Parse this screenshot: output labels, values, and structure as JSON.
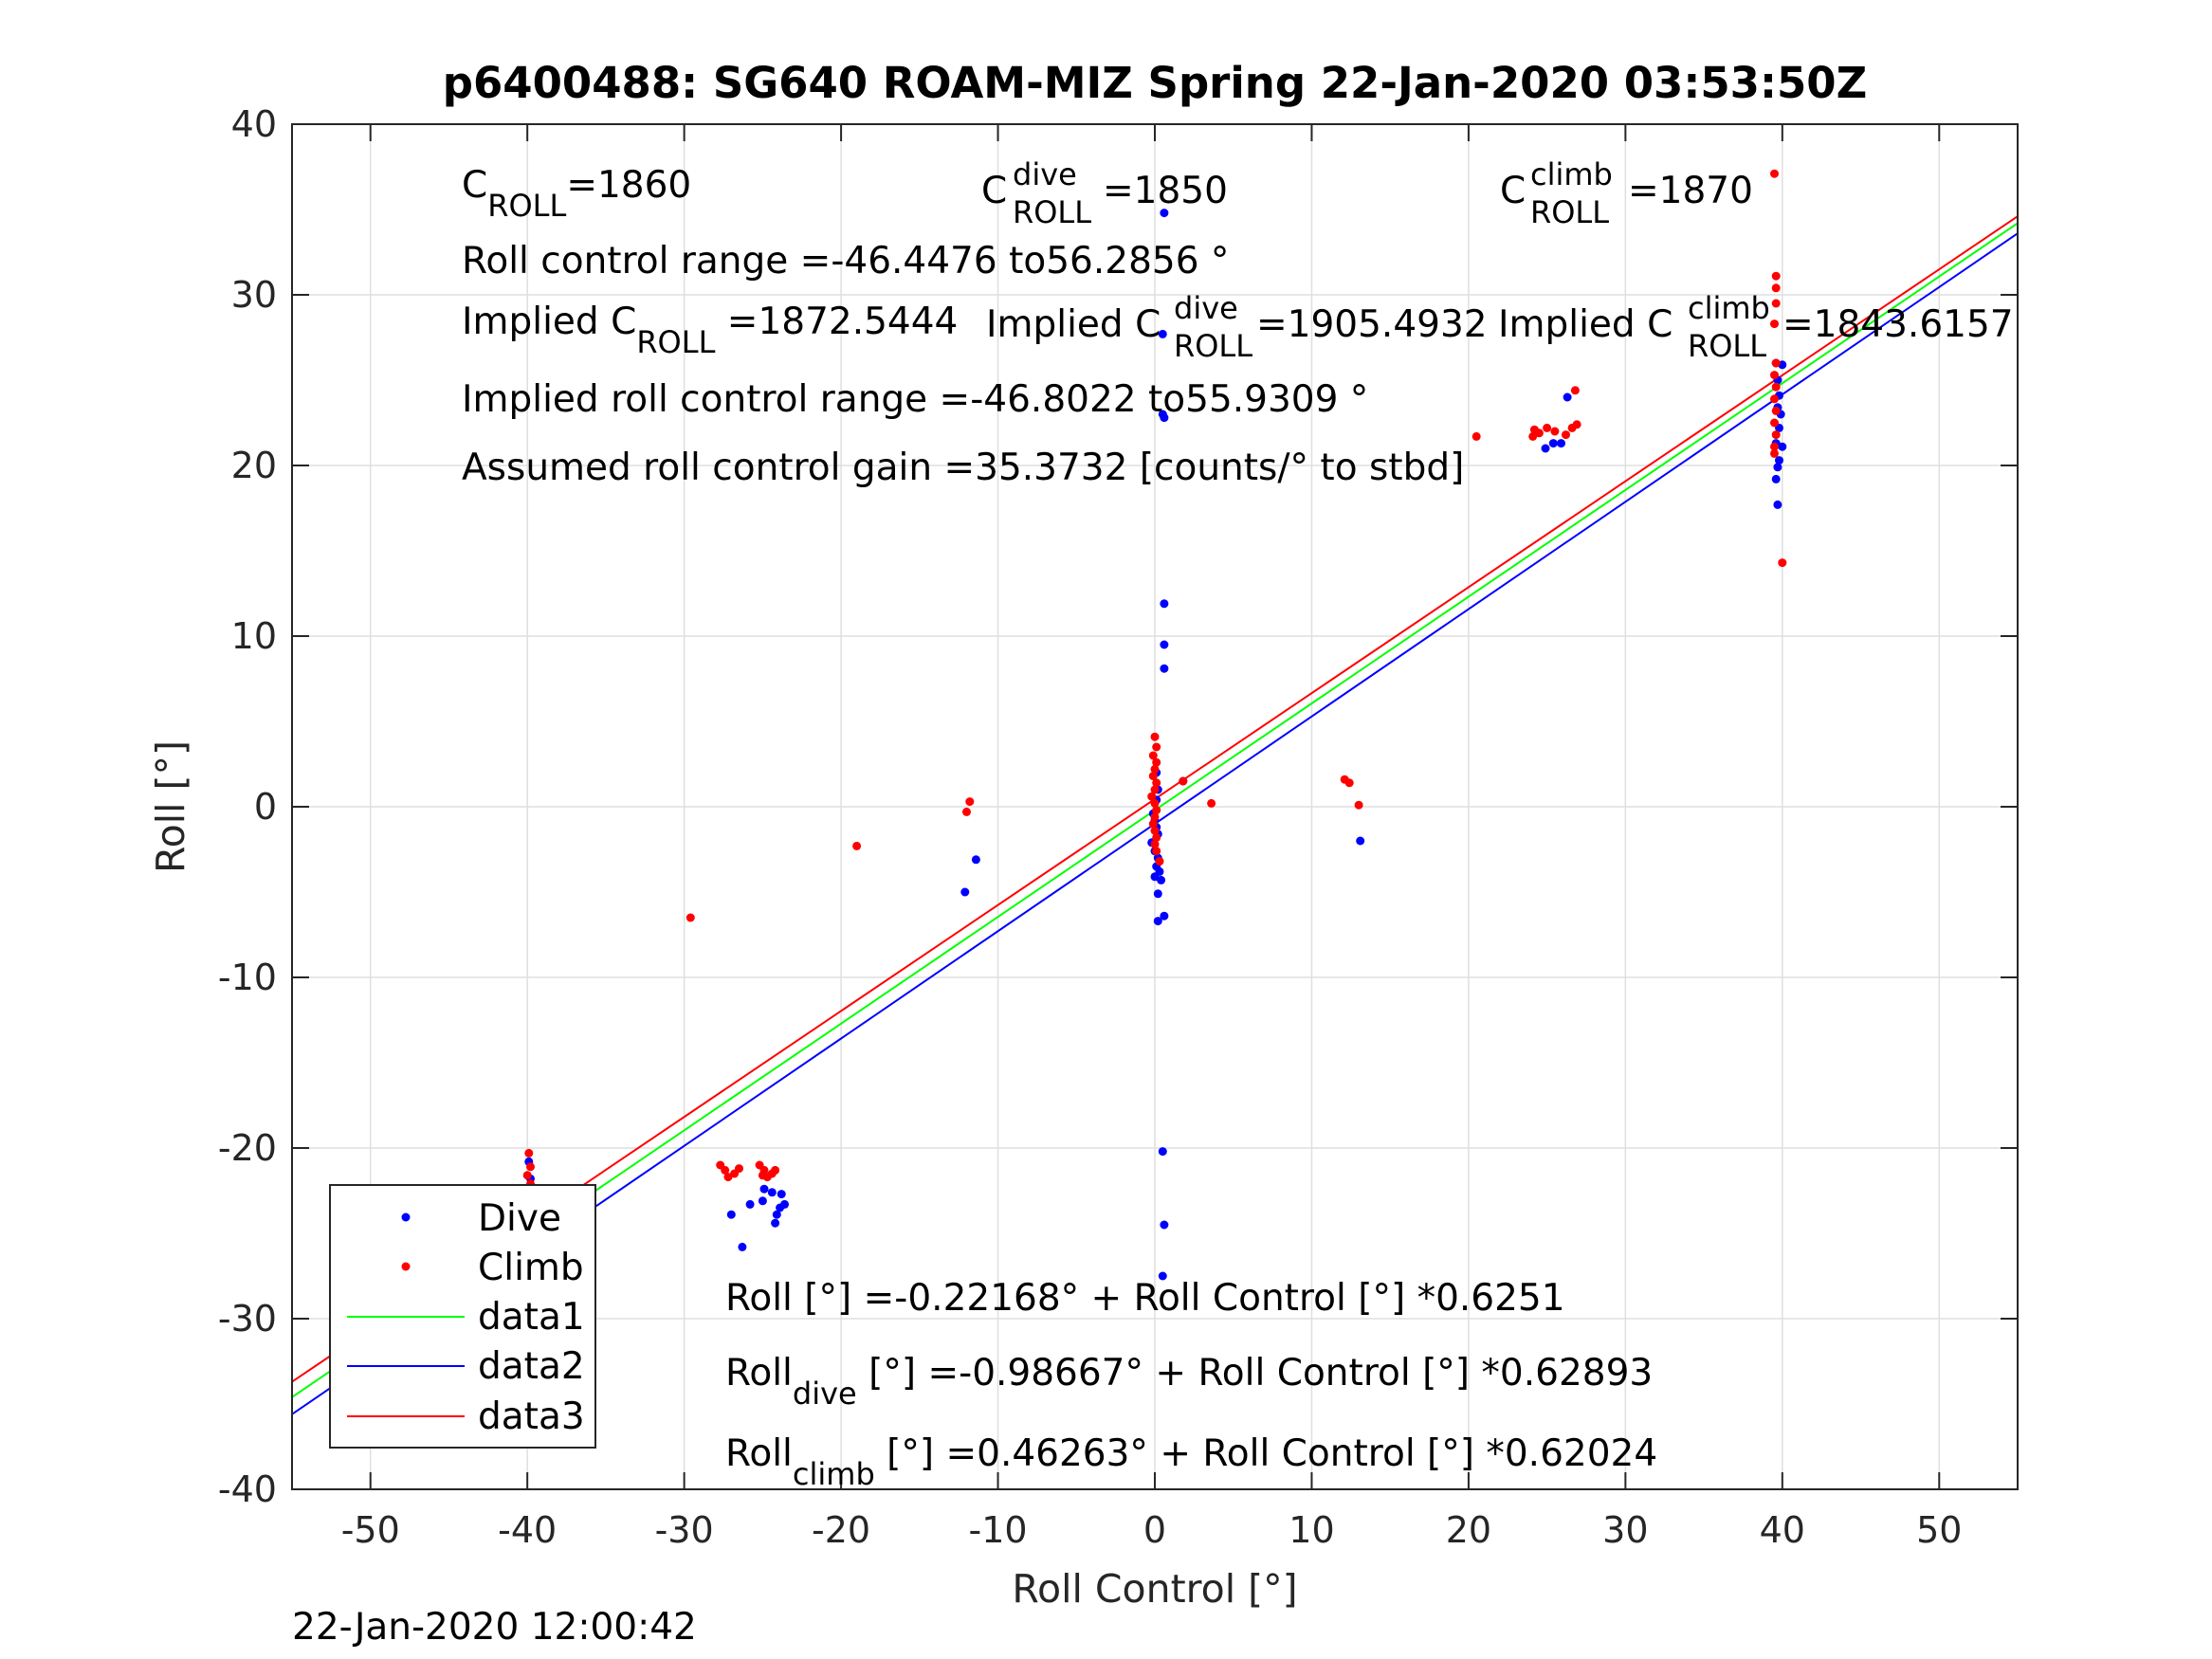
{
  "title": "p6400488: SG640 ROAM-MIZ Spring 22-Jan-2020 03:53:50Z",
  "timestamp": "22-Jan-2020 12:00:42",
  "annotations": {
    "c_roll": {
      "symbol": "C",
      "sub": "ROLL",
      "value": "=1860"
    },
    "c_roll_dive": {
      "symbol": "C",
      "sup": "dive",
      "sub": "ROLL",
      "value": "=1850"
    },
    "c_roll_climb": {
      "symbol": "C",
      "sup": "climb",
      "sub": "ROLL",
      "value": "=1870"
    },
    "roll_range": "Roll control range =-46.4476 to56.2856 °",
    "implied_c_roll": {
      "prefix": "Implied C",
      "sub": "ROLL",
      "value": " =1872.5444"
    },
    "implied_c_dive": {
      "prefix": "Implied C",
      "sup": "dive",
      "sub": "ROLL",
      "value": " =1905.4932"
    },
    "implied_c_climb": {
      "prefix": "Implied C",
      "sup": "climb",
      "sub": "ROLL",
      "value": " =1843.6157"
    },
    "implied_range": "Implied roll control range =-46.8022 to55.9309 °",
    "gain": "Assumed roll control gain =35.3732 [counts/° to stbd]",
    "fit_all": "Roll [°] =-0.22168° + Roll Control [°] *0.6251",
    "fit_dive": {
      "prefix": "Roll",
      "sub": "dive",
      "rest": " [°] =-0.98667° + Roll Control [°] *0.62893"
    },
    "fit_climb": {
      "prefix": "Roll",
      "sub": "climb",
      "rest": " [°] =0.46263° + Roll Control [°] *0.62024"
    }
  },
  "colors": {
    "dive": "#0000ff",
    "climb": "#ff0000",
    "data1": "#00ff00",
    "data2": "#0000ff",
    "data3": "#ff0000",
    "grid": "#dfdfdf"
  },
  "chart_data": {
    "type": "scatter",
    "title": "p6400488: SG640 ROAM-MIZ Spring 22-Jan-2020 03:53:50Z",
    "xlabel": "Roll Control [°]",
    "ylabel": "Roll [°]",
    "xlim": [
      -55,
      55
    ],
    "ylim": [
      -40,
      40
    ],
    "xticks": [
      -50,
      -40,
      -30,
      -20,
      -10,
      0,
      10,
      20,
      30,
      40,
      50
    ],
    "yticks": [
      -40,
      -30,
      -20,
      -10,
      0,
      10,
      20,
      30,
      40
    ],
    "grid": true,
    "legend_position": "bottom-left",
    "series": [
      {
        "name": "Dive",
        "kind": "points",
        "points": [
          [
            -39.9,
            -20.8
          ],
          [
            -39.8,
            -21.8
          ],
          [
            -39.8,
            -22.6
          ],
          [
            -39.9,
            -23.4
          ],
          [
            -39.8,
            -24.1
          ],
          [
            -39.7,
            -24.8
          ],
          [
            -39.9,
            -25.5
          ],
          [
            -39.8,
            -26.1
          ],
          [
            -39.6,
            -26.7
          ],
          [
            -39.7,
            -27.3
          ],
          [
            -39.9,
            -27.9
          ],
          [
            -39.8,
            -28.4
          ],
          [
            -39.5,
            -25.9
          ],
          [
            -39.6,
            -26.4
          ],
          [
            -27.0,
            -23.9
          ],
          [
            -26.3,
            -25.8
          ],
          [
            -25.8,
            -23.3
          ],
          [
            -25.0,
            -23.1
          ],
          [
            -24.9,
            -22.4
          ],
          [
            -24.4,
            -22.6
          ],
          [
            -24.1,
            -23.9
          ],
          [
            -24.2,
            -24.4
          ],
          [
            -23.9,
            -23.5
          ],
          [
            -23.6,
            -23.3
          ],
          [
            -23.8,
            -22.7
          ],
          [
            -12.1,
            -5.0
          ],
          [
            -11.4,
            -3.1
          ],
          [
            0.6,
            34.8
          ],
          [
            0.5,
            27.7
          ],
          [
            0.5,
            23.0
          ],
          [
            0.6,
            22.8
          ],
          [
            0.6,
            11.9
          ],
          [
            0.6,
            9.5
          ],
          [
            0.6,
            8.1
          ],
          [
            0.1,
            2.0
          ],
          [
            0.2,
            1.0
          ],
          [
            0.1,
            0.4
          ],
          [
            -0.1,
            -0.4
          ],
          [
            0.0,
            -0.8
          ],
          [
            0.1,
            -1.2
          ],
          [
            0.2,
            -1.6
          ],
          [
            -0.2,
            -2.1
          ],
          [
            0.0,
            -2.6
          ],
          [
            0.2,
            -3.0
          ],
          [
            0.1,
            -3.5
          ],
          [
            0.3,
            -3.8
          ],
          [
            0.0,
            -4.1
          ],
          [
            0.4,
            -4.3
          ],
          [
            0.2,
            -5.1
          ],
          [
            0.6,
            -6.4
          ],
          [
            0.2,
            -6.7
          ],
          [
            1.8,
            1.5
          ],
          [
            0.5,
            -20.2
          ],
          [
            0.6,
            -24.5
          ],
          [
            0.5,
            -27.5
          ],
          [
            13.1,
            -2.0
          ],
          [
            24.9,
            21.0
          ],
          [
            25.4,
            21.3
          ],
          [
            25.9,
            21.3
          ],
          [
            26.3,
            24.0
          ],
          [
            39.6,
            26.0
          ],
          [
            39.7,
            25.0
          ],
          [
            39.8,
            24.1
          ],
          [
            39.7,
            23.4
          ],
          [
            39.9,
            23.0
          ],
          [
            39.8,
            22.2
          ],
          [
            39.6,
            21.3
          ],
          [
            39.8,
            20.3
          ],
          [
            39.7,
            19.9
          ],
          [
            39.6,
            19.2
          ],
          [
            39.7,
            17.7
          ],
          [
            40.0,
            25.9
          ],
          [
            40.0,
            21.1
          ]
        ]
      },
      {
        "name": "Climb",
        "kind": "points",
        "points": [
          [
            -39.9,
            -20.3
          ],
          [
            -39.8,
            -21.1
          ],
          [
            -40.0,
            -21.6
          ],
          [
            -39.8,
            -22.1
          ],
          [
            -39.9,
            -22.6
          ],
          [
            -39.7,
            -23.0
          ],
          [
            -39.9,
            -23.5
          ],
          [
            -39.8,
            -24.0
          ],
          [
            -39.9,
            -24.5
          ],
          [
            -39.8,
            -25.0
          ],
          [
            -39.7,
            -25.5
          ],
          [
            -39.8,
            -26.0
          ],
          [
            -39.9,
            -26.5
          ],
          [
            -40.0,
            -24.3
          ],
          [
            -29.6,
            -6.5
          ],
          [
            -27.7,
            -21.0
          ],
          [
            -27.4,
            -21.3
          ],
          [
            -27.2,
            -21.7
          ],
          [
            -26.8,
            -21.5
          ],
          [
            -26.5,
            -21.2
          ],
          [
            -25.2,
            -21.0
          ],
          [
            -24.9,
            -21.3
          ],
          [
            -24.7,
            -21.7
          ],
          [
            -24.4,
            -21.5
          ],
          [
            -24.2,
            -21.3
          ],
          [
            -25.0,
            -21.6
          ],
          [
            -19.0,
            -2.3
          ],
          [
            -12.0,
            -0.3
          ],
          [
            -11.8,
            0.3
          ],
          [
            0.0,
            4.1
          ],
          [
            0.1,
            3.5
          ],
          [
            -0.1,
            3.0
          ],
          [
            0.1,
            2.6
          ],
          [
            0.0,
            2.2
          ],
          [
            -0.1,
            1.8
          ],
          [
            0.1,
            1.4
          ],
          [
            0.0,
            1.0
          ],
          [
            -0.2,
            0.6
          ],
          [
            0.0,
            0.2
          ],
          [
            0.1,
            -0.2
          ],
          [
            0.0,
            -0.6
          ],
          [
            -0.1,
            -1.0
          ],
          [
            0.0,
            -1.4
          ],
          [
            0.1,
            -1.8
          ],
          [
            0.0,
            -2.2
          ],
          [
            0.1,
            -2.6
          ],
          [
            0.3,
            -3.2
          ],
          [
            1.8,
            1.5
          ],
          [
            3.6,
            0.2
          ],
          [
            12.1,
            1.6
          ],
          [
            12.4,
            1.4
          ],
          [
            13.0,
            0.1
          ],
          [
            20.5,
            21.7
          ],
          [
            24.1,
            21.7
          ],
          [
            24.2,
            22.1
          ],
          [
            24.5,
            21.9
          ],
          [
            25.0,
            22.2
          ],
          [
            25.5,
            22.0
          ],
          [
            26.2,
            21.8
          ],
          [
            26.6,
            22.2
          ],
          [
            26.9,
            22.4
          ],
          [
            26.8,
            24.4
          ],
          [
            39.5,
            37.1
          ],
          [
            39.6,
            31.1
          ],
          [
            39.6,
            30.4
          ],
          [
            39.6,
            29.5
          ],
          [
            39.5,
            28.3
          ],
          [
            39.6,
            26.0
          ],
          [
            39.5,
            25.3
          ],
          [
            39.6,
            24.6
          ],
          [
            39.5,
            23.9
          ],
          [
            39.6,
            23.2
          ],
          [
            39.5,
            22.5
          ],
          [
            39.6,
            21.8
          ],
          [
            39.5,
            21.1
          ],
          [
            39.5,
            20.7
          ],
          [
            40.0,
            14.3
          ]
        ]
      },
      {
        "name": "data1",
        "kind": "line",
        "points": [
          [
            -55,
            -34.6
          ],
          [
            55,
            34.2
          ]
        ]
      },
      {
        "name": "data2",
        "kind": "line",
        "points": [
          [
            -55,
            -35.6
          ],
          [
            55,
            33.6
          ]
        ]
      },
      {
        "name": "data3",
        "kind": "line",
        "points": [
          [
            -55,
            -33.7
          ],
          [
            55,
            34.6
          ]
        ]
      }
    ]
  }
}
